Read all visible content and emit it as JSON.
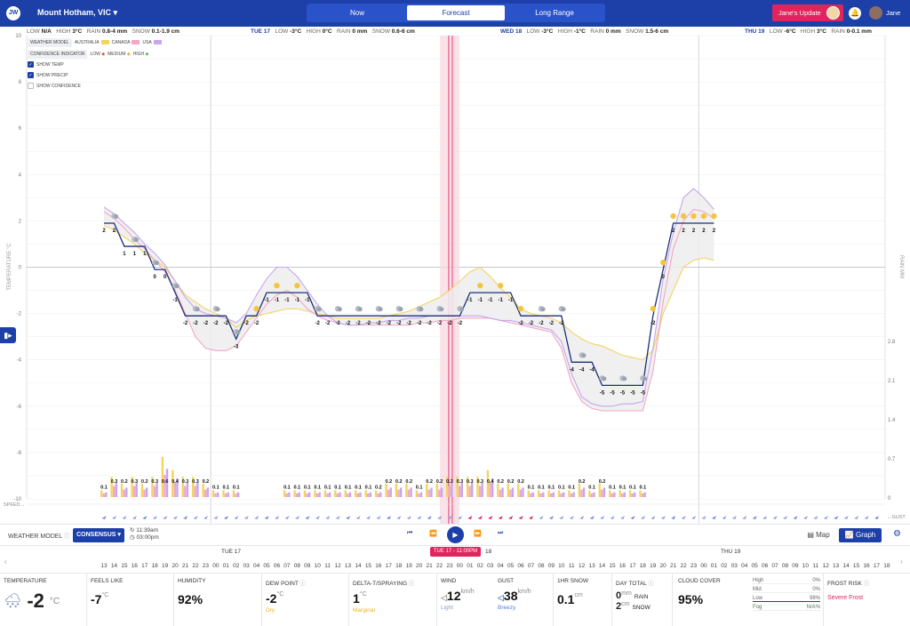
{
  "app": {
    "logo": "JW",
    "location": "Mount Hotham, VIC",
    "tabs": [
      "Now",
      "Forecast",
      "Long Range"
    ],
    "active_tab": "Forecast",
    "update_button": "Jane's Update",
    "user_name": "Jane"
  },
  "day_strip": [
    {
      "day": "",
      "low": "N/A",
      "high": "3°C",
      "rain": "0.8-4 mm",
      "snow": "0.1-1.9 cm"
    },
    {
      "day": "TUE 17",
      "low": "-3°C",
      "high": "0°C",
      "rain": "0 mm",
      "snow": "0.6-6 cm"
    },
    {
      "day": "WED 18",
      "low": "-3°C",
      "high": "-1°C",
      "rain": "0 mm",
      "snow": "1.5-6 cm"
    },
    {
      "day": "THU 19",
      "low": "-6°C",
      "high": "3°C",
      "rain": "0-0.1 mm",
      "snow": ""
    }
  ],
  "legend": {
    "weather_model_label": "WEATHER MODEL",
    "models": [
      "AUSTRALIA",
      "CANADA",
      "USA"
    ],
    "model_colors": [
      "#f3d460",
      "#f4a6c6",
      "#c7a6ee"
    ],
    "confidence_label": "CONFIDENCE INDICATOR",
    "confidence": [
      "LOW",
      "MEDIUM",
      "HIGH"
    ],
    "confidence_colors": [
      "#e3542f",
      "#f2a23a",
      "#5fb84a"
    ],
    "checks": [
      {
        "label": "SHOW TEMP",
        "on": true
      },
      {
        "label": "SHOW PRECIP",
        "on": true
      },
      {
        "label": "SHOW CONFIDENCE",
        "on": false
      }
    ]
  },
  "axis_labels": {
    "left": "TEMPERATURE °C",
    "right": "RAIN MM",
    "speed": "SPEED→",
    "gust": "←GUST"
  },
  "chart_data": {
    "type": "line",
    "xlabel": "",
    "ylabel": "TEMPERATURE °C",
    "ylim": [
      -10,
      10
    ],
    "yticks": [
      10,
      8,
      6,
      4,
      2,
      0,
      -2,
      -4,
      -6,
      -8,
      -10
    ],
    "y2label": "RAIN MM",
    "y2ticks": [
      2.8,
      2.1,
      1.4,
      0.7,
      0
    ],
    "y2lim": [
      0,
      2.8
    ],
    "hours_start": 13,
    "temperature_consensus": [
      2,
      2,
      1,
      1,
      1,
      0,
      0,
      -1,
      -2,
      -2,
      -2,
      -2,
      -2,
      -3,
      -2,
      -2,
      -1,
      -1,
      -1,
      -1,
      -1,
      -2,
      -2,
      -2,
      -2,
      -2,
      -2,
      -2,
      -2,
      -2,
      -2,
      -2,
      -2,
      -2,
      -2,
      -2,
      -1,
      -1,
      -1,
      -1,
      -1,
      -2,
      -2,
      -2,
      -2,
      -2,
      -4,
      -4,
      -4,
      -5,
      -5,
      -5,
      -5,
      -5,
      -2,
      0,
      2,
      2,
      2,
      2,
      2
    ],
    "temperature_labels": [
      "2",
      "2",
      "1",
      "1",
      "1",
      "0",
      "0",
      "-1",
      "-2",
      "-2",
      "-2",
      "-2",
      "-2",
      "-3",
      "-2",
      "-2",
      "-1",
      "-1",
      "-1",
      "-1",
      "-1",
      "-2",
      "-2",
      "-2",
      "-2",
      "-2",
      "-2",
      "-2",
      "-2",
      "-2",
      "-2",
      "-2",
      "-2",
      "-2",
      "-2",
      "-2",
      "-1",
      "-1",
      "-1",
      "-1",
      "-1",
      "-2",
      "-2",
      "-2",
      "-2",
      "-2",
      "-4",
      "-4",
      "-4",
      "-5",
      "-5",
      "-5",
      "-5",
      "-5",
      "-2",
      "0",
      "2",
      "2",
      "2",
      "2",
      "2"
    ],
    "series": [
      {
        "name": "AUSTRALIA",
        "values": [
          1.8,
          1.6,
          1.3,
          1,
          0.6,
          0.3,
          0,
          -0.6,
          -1.2,
          -1.5,
          -1.8,
          -2,
          -2.2,
          -2.6,
          -2.3,
          -2.1,
          -2,
          -1.9,
          -1.8,
          -1.8,
          -1.9,
          -2,
          -2.1,
          -2.2,
          -2.2,
          -2.2,
          -2.2,
          -2.2,
          -2.1,
          -2,
          -1.9,
          -1.7,
          -1.5,
          -1.3,
          -1,
          -0.6,
          -0.2,
          0,
          -0.4,
          -0.9,
          -1.3,
          -1.8,
          -2,
          -2.1,
          -2.2,
          -2.4,
          -2.8,
          -3.1,
          -3.3,
          -3.4,
          -3.6,
          -3.8,
          -3.9,
          -4,
          -3.6,
          -2,
          -1,
          0,
          0.3,
          0.4,
          0.3
        ]
      },
      {
        "name": "CANADA",
        "values": [
          2.4,
          2.1,
          1.7,
          1.2,
          0.8,
          0.3,
          -0.2,
          -1,
          -2,
          -3,
          -3.5,
          -3.6,
          -3.6,
          -3.4,
          -2.8,
          -2.2,
          -1.6,
          -1.2,
          -1,
          -1.3,
          -1.8,
          -2.1,
          -2.3,
          -2.4,
          -2.5,
          -2.5,
          -2.5,
          -2.5,
          -2.5,
          -2.5,
          -2.5,
          -2.4,
          -2.4,
          -2.3,
          -2.3,
          -2.2,
          -2.2,
          -2.2,
          -2.2,
          -2.3,
          -2.4,
          -2.5,
          -2.6,
          -2.7,
          -2.8,
          -3.5,
          -5,
          -5.8,
          -6.1,
          -6.2,
          -6.2,
          -6.2,
          -6.2,
          -6.2,
          -4.5,
          -1.5,
          0.8,
          2,
          2.5,
          2.4,
          2.1
        ]
      },
      {
        "name": "USA",
        "values": [
          2.6,
          2.3,
          1.9,
          1.5,
          1,
          0.6,
          0.1,
          -0.6,
          -1.3,
          -1.8,
          -2,
          -2.1,
          -2.2,
          -2.4,
          -2,
          -1.2,
          -0.5,
          0,
          0,
          -0.4,
          -1,
          -1.6,
          -2.1,
          -2.4,
          -2.5,
          -2.5,
          -2.4,
          -2.4,
          -2.3,
          -2.3,
          -2.2,
          -2.2,
          -2.1,
          -2.1,
          -2.1,
          -2.1,
          -2.1,
          -2.1,
          -2.2,
          -2.3,
          -2.3,
          -2.4,
          -2.5,
          -2.6,
          -2.7,
          -3.2,
          -4.6,
          -5.6,
          -5.9,
          -6,
          -6,
          -5.9,
          -5.9,
          -5.8,
          -3.5,
          -0.5,
          1.5,
          3,
          3.4,
          3,
          2.5
        ]
      }
    ],
    "precip_labels": [
      "0.1",
      "0.3",
      "0.2",
      "0.3",
      "0.2",
      "0.3",
      "0.6",
      "0.4",
      "0.3",
      "0.3",
      "0.2",
      "0.1",
      "0.1",
      "0.1",
      "0.1",
      "0.1",
      "0.1",
      "0.1",
      "0.1",
      "0.1",
      "0.1",
      "0.1",
      "0.1",
      "0.2",
      "0.2",
      "0.2",
      "0.2",
      "0.1",
      "0.2",
      "0.2",
      "0.3",
      "0.3",
      "0.3",
      "0.3",
      "0.4",
      "0.2",
      "0.2",
      "0.2",
      "0.1",
      "0.1",
      "0.1",
      "0.1",
      "0.1",
      "0.2",
      "0.1",
      "0.2",
      "0.1",
      "0.1",
      "0.1",
      "0.1"
    ],
    "precip": [
      0.1,
      0.3,
      0.2,
      0.3,
      0.2,
      0.3,
      0.6,
      0.4,
      0.3,
      0.3,
      0.2,
      0.1,
      0.1,
      0.1,
      0,
      0,
      0,
      0,
      0.1,
      0.1,
      0.1,
      0.1,
      0.1,
      0.1,
      0.1,
      0.1,
      0.1,
      0.1,
      0.2,
      0.2,
      0.2,
      0.1,
      0.2,
      0.2,
      0.3,
      0.3,
      0.3,
      0.3,
      0.4,
      0.2,
      0.2,
      0.2,
      0.1,
      0.1,
      0.1,
      0.1,
      0.1,
      0.2,
      0.1,
      0.2,
      0.1,
      0.1,
      0.1,
      0.1,
      0,
      0,
      0,
      0,
      0,
      0,
      0
    ],
    "day_markers": [
      "TUE 17",
      "WED 18",
      "THU 19"
    ],
    "current_time_label": "TUE 17 - 11:00PM",
    "grid": true
  },
  "controls": {
    "weather_model_label": "WEATHER MODEL",
    "model": "CONSENSUS",
    "updated": "11:39am",
    "next_update": "03:00pm",
    "map_label": "Map",
    "graph_label": "Graph"
  },
  "timeline": {
    "days": [
      "TUE 17",
      "18",
      "THU 19"
    ],
    "marker": "TUE 17 - 11:00PM",
    "hours": [
      "13",
      "14",
      "15",
      "16",
      "17",
      "18",
      "19",
      "20",
      "21",
      "22",
      "23",
      "00",
      "01",
      "02",
      "03",
      "04",
      "05",
      "06",
      "07",
      "08",
      "09",
      "10",
      "11",
      "12",
      "13",
      "14",
      "15",
      "16",
      "17",
      "18",
      "19",
      "20",
      "21",
      "22",
      "23",
      "00",
      "01",
      "02",
      "03",
      "04",
      "05",
      "06",
      "07",
      "08",
      "09",
      "10",
      "11",
      "12",
      "13",
      "14",
      "15",
      "16",
      "17",
      "18",
      "19",
      "20",
      "21",
      "22",
      "23",
      "00",
      "01",
      "02",
      "03",
      "04",
      "05",
      "06",
      "07",
      "08",
      "09",
      "10",
      "11",
      "12",
      "13",
      "14",
      "15",
      "16",
      "17",
      "18",
      "19",
      "20",
      "21",
      "22",
      "23"
    ]
  },
  "observations": {
    "temperature": {
      "label": "TEMPERATURE",
      "value": "-2",
      "unit": "°C"
    },
    "feels_like": {
      "label": "FEELS LIKE",
      "value": "-7",
      "unit": "°C"
    },
    "humidity": {
      "label": "HUMIDITY",
      "value": "92%"
    },
    "dew_point": {
      "label": "DEW POINT",
      "value": "-2",
      "unit": "°C",
      "sub": "Dry",
      "sub_color": "#e8b321"
    },
    "delta_t": {
      "label": "DELTA-T/SPRAYING",
      "value": "1",
      "unit": "°C",
      "sub": "Marginal",
      "sub_color": "#e8b321"
    },
    "wind": {
      "label": "WIND",
      "value": "12",
      "unit": "km/h",
      "sub": "Light",
      "sub_color": "#8aa0c8"
    },
    "gust": {
      "label": "GUST",
      "value": "38",
      "unit": "km/h",
      "sub": "Breezy",
      "sub_color": "#5a7fd6"
    },
    "snow_1hr": {
      "label": "1HR SNOW",
      "value": "0.1",
      "unit": "cm"
    },
    "day_total": {
      "label": "DAY TOTAL",
      "rain_value": "0",
      "rain_unit": "mm",
      "rain_label": "RAIN",
      "snow_value": "2",
      "snow_unit": "cm",
      "snow_label": "SNOW"
    },
    "cloud_cover": {
      "label": "CLOUD COVER",
      "value": "95%",
      "rows": [
        {
          "name": "High",
          "value": "0%"
        },
        {
          "name": "Mid",
          "value": "0%"
        },
        {
          "name": "Low",
          "value": "98%"
        },
        {
          "name": "Fog",
          "value": "N/A%"
        }
      ]
    },
    "frost_risk": {
      "label": "FROST RISK",
      "sub": "Severe Frost",
      "sub_color": "#e0245e"
    }
  }
}
